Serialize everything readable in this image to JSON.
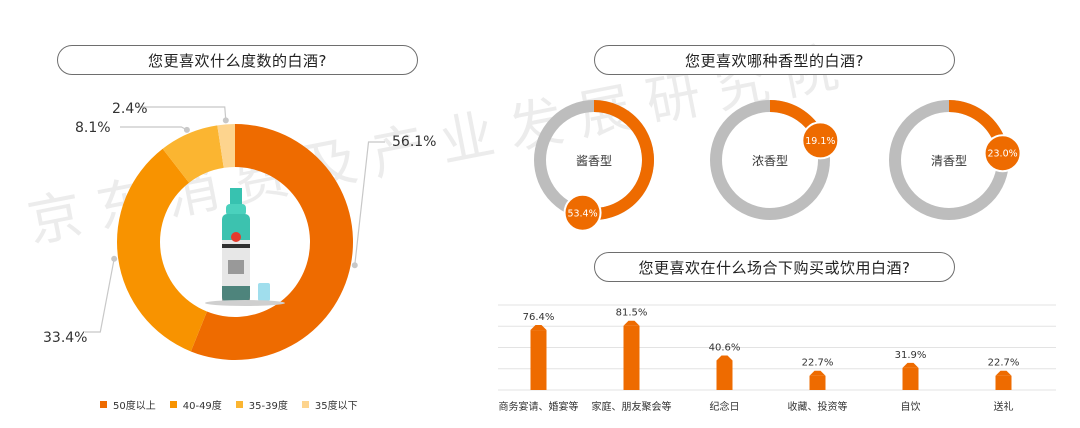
{
  "titles": {
    "degree": "您更喜欢什么度数的白酒?",
    "aroma": "您更喜欢哪种香型的白酒?",
    "occasion": "您更喜欢在什么场合下购买或饮用白酒?"
  },
  "watermark": "京东消费及产业发展研究院",
  "colors": {
    "orange_dark": "#EE6B00",
    "orange": "#F89300",
    "orange_light": "#FBB531",
    "orange_pale": "#FDD48E",
    "ring_gray": "#BDBDBD",
    "grid": "#e3e3e3"
  },
  "chart_data": [
    {
      "type": "pie",
      "title": "您更喜欢什么度数的白酒?",
      "slices": [
        {
          "label": "50度以上",
          "value": 56.1,
          "value_label": "56.1%"
        },
        {
          "label": "40-49度",
          "value": 33.4,
          "value_label": "33.4%"
        },
        {
          "label": "35-39度",
          "value": 8.1,
          "value_label": "8.1%"
        },
        {
          "label": "35度以下",
          "value": 2.4,
          "value_label": "2.4%"
        }
      ],
      "legend_position": "bottom"
    },
    {
      "type": "pie",
      "title": "您更喜欢哪种香型的白酒?",
      "rings": [
        {
          "label": "酱香型",
          "value": 53.4,
          "value_label": "53.4%"
        },
        {
          "label": "浓香型",
          "value": 19.1,
          "value_label": "19.1%"
        },
        {
          "label": "清香型",
          "value": 23.0,
          "value_label": "23.0%"
        }
      ]
    },
    {
      "type": "bar",
      "title": "您更喜欢在什么场合下购买或饮用白酒?",
      "categories": [
        "商务宴请、婚宴等",
        "家庭、朋友聚会等",
        "纪念日",
        "收藏、投资等",
        "自饮",
        "送礼"
      ],
      "values": [
        76.4,
        81.5,
        40.6,
        22.7,
        31.9,
        22.7
      ],
      "value_labels": [
        "76.4%",
        "81.5%",
        "40.6%",
        "22.7%",
        "31.9%",
        "22.7%"
      ],
      "ylim": [
        0,
        100
      ],
      "grid": true
    }
  ]
}
